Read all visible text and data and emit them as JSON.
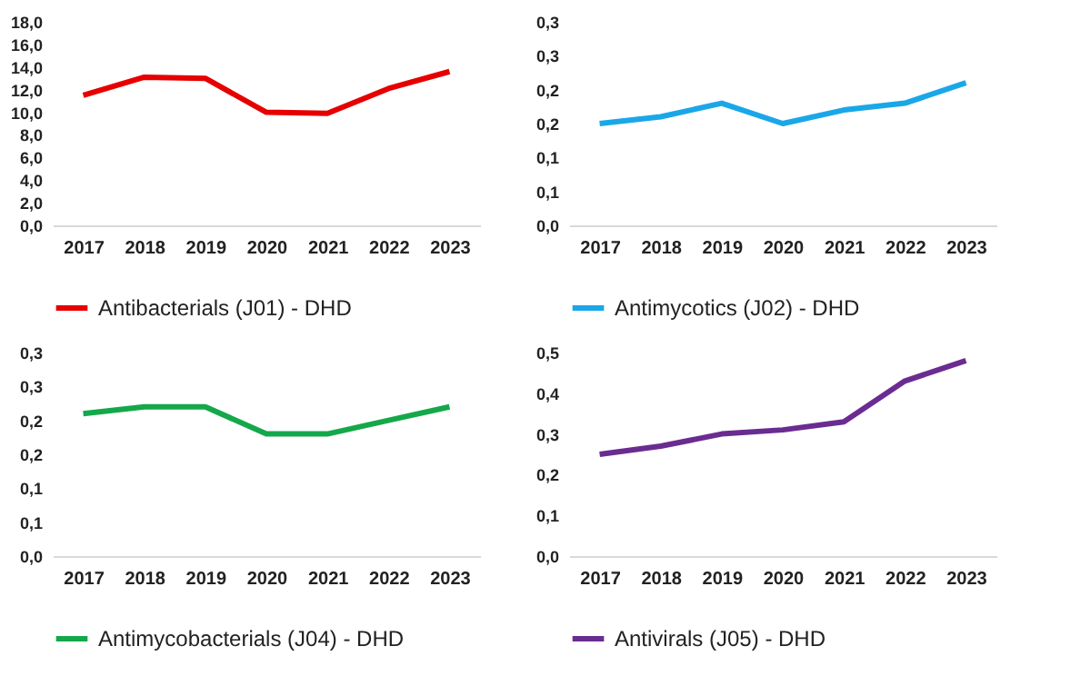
{
  "chart_data": [
    {
      "type": "line",
      "categories": [
        "2017",
        "2018",
        "2019",
        "2020",
        "2021",
        "2022",
        "2023"
      ],
      "series": [
        {
          "name": "Antibacterials (J01) - DHD",
          "color": "#e60000",
          "values": [
            11.5,
            13.1,
            13.0,
            10.0,
            9.9,
            12.1,
            13.6
          ]
        }
      ],
      "ylim": [
        0,
        18
      ],
      "yticks": [
        {
          "value": 0,
          "label": "0,0"
        },
        {
          "value": 2,
          "label": "2,0"
        },
        {
          "value": 4,
          "label": "4,0"
        },
        {
          "value": 6,
          "label": "6,0"
        },
        {
          "value": 8,
          "label": "8,0"
        },
        {
          "value": 10,
          "label": "10,0"
        },
        {
          "value": 12,
          "label": "12,0"
        },
        {
          "value": 14,
          "label": "14,0"
        },
        {
          "value": 16,
          "label": "16,0"
        },
        {
          "value": 18,
          "label": "18,0"
        }
      ],
      "legend": "bottom"
    },
    {
      "type": "line",
      "categories": [
        "2017",
        "2018",
        "2019",
        "2020",
        "2021",
        "2022",
        "2023"
      ],
      "series": [
        {
          "name": "Antimycotics (J02) - DHD",
          "color": "#1aa7e8",
          "values": [
            0.15,
            0.16,
            0.18,
            0.15,
            0.17,
            0.18,
            0.21
          ]
        }
      ],
      "ylim": [
        0,
        0.3
      ],
      "yticks": [
        {
          "value": 0,
          "label": "0,0"
        },
        {
          "value": 0.05,
          "label": "0,1"
        },
        {
          "value": 0.1,
          "label": "0,1"
        },
        {
          "value": 0.15,
          "label": "0,2"
        },
        {
          "value": 0.2,
          "label": "0,2"
        },
        {
          "value": 0.25,
          "label": "0,3"
        },
        {
          "value": 0.3,
          "label": "0,3"
        }
      ],
      "legend": "bottom"
    },
    {
      "type": "line",
      "categories": [
        "2017",
        "2018",
        "2019",
        "2020",
        "2021",
        "2022",
        "2023"
      ],
      "series": [
        {
          "name": "Antimycobacterials (J04) - DHD",
          "color": "#14a84b",
          "values": [
            0.21,
            0.22,
            0.22,
            0.18,
            0.18,
            0.2,
            0.22
          ]
        }
      ],
      "ylim": [
        0,
        0.3
      ],
      "yticks": [
        {
          "value": 0,
          "label": "0,0"
        },
        {
          "value": 0.05,
          "label": "0,1"
        },
        {
          "value": 0.1,
          "label": "0,1"
        },
        {
          "value": 0.15,
          "label": "0,2"
        },
        {
          "value": 0.2,
          "label": "0,2"
        },
        {
          "value": 0.25,
          "label": "0,3"
        },
        {
          "value": 0.3,
          "label": "0,3"
        }
      ],
      "legend": "bottom"
    },
    {
      "type": "line",
      "categories": [
        "2017",
        "2018",
        "2019",
        "2020",
        "2021",
        "2022",
        "2023"
      ],
      "series": [
        {
          "name": "Antivirals (J05) - DHD",
          "color": "#6a2c91",
          "values": [
            0.25,
            0.27,
            0.3,
            0.31,
            0.33,
            0.43,
            0.48
          ]
        }
      ],
      "ylim": [
        0,
        0.5
      ],
      "yticks": [
        {
          "value": 0,
          "label": "0,0"
        },
        {
          "value": 0.1,
          "label": "0,1"
        },
        {
          "value": 0.2,
          "label": "0,2"
        },
        {
          "value": 0.3,
          "label": "0,3"
        },
        {
          "value": 0.4,
          "label": "0,4"
        },
        {
          "value": 0.5,
          "label": "0,5"
        }
      ],
      "legend": "bottom"
    }
  ]
}
